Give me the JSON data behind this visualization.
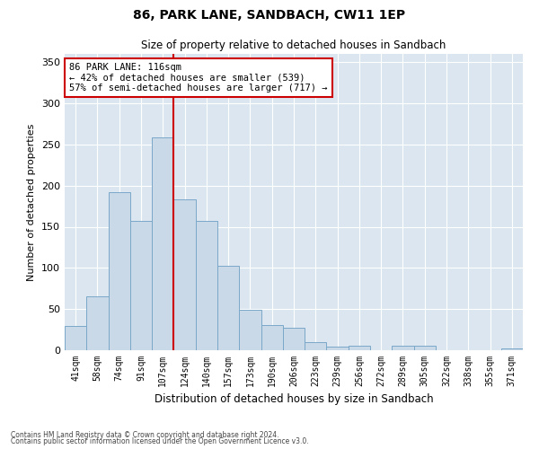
{
  "title": "86, PARK LANE, SANDBACH, CW11 1EP",
  "subtitle": "Size of property relative to detached houses in Sandbach",
  "xlabel": "Distribution of detached houses by size in Sandbach",
  "ylabel": "Number of detached properties",
  "categories": [
    "41sqm",
    "58sqm",
    "74sqm",
    "91sqm",
    "107sqm",
    "124sqm",
    "140sqm",
    "157sqm",
    "173sqm",
    "190sqm",
    "206sqm",
    "223sqm",
    "239sqm",
    "256sqm",
    "272sqm",
    "289sqm",
    "305sqm",
    "322sqm",
    "338sqm",
    "355sqm",
    "371sqm"
  ],
  "values": [
    29,
    65,
    192,
    157,
    258,
    183,
    157,
    103,
    49,
    31,
    27,
    10,
    4,
    5,
    0,
    5,
    6,
    0,
    0,
    0,
    2
  ],
  "bar_color": "#c9d9e8",
  "bar_edge_color": "#7aa8c8",
  "vline_color": "#cc0000",
  "vline_x_index": 4.5,
  "annotation_text": "86 PARK LANE: 116sqm\n← 42% of detached houses are smaller (539)\n57% of semi-detached houses are larger (717) →",
  "annotation_box_color": "#ffffff",
  "annotation_box_edge": "#cc0000",
  "ylim": [
    0,
    360
  ],
  "yticks": [
    0,
    50,
    100,
    150,
    200,
    250,
    300,
    350
  ],
  "background_color": "#dce6f0",
  "grid_color": "#ffffff",
  "footer_line1": "Contains HM Land Registry data © Crown copyright and database right 2024.",
  "footer_line2": "Contains public sector information licensed under the Open Government Licence v3.0."
}
